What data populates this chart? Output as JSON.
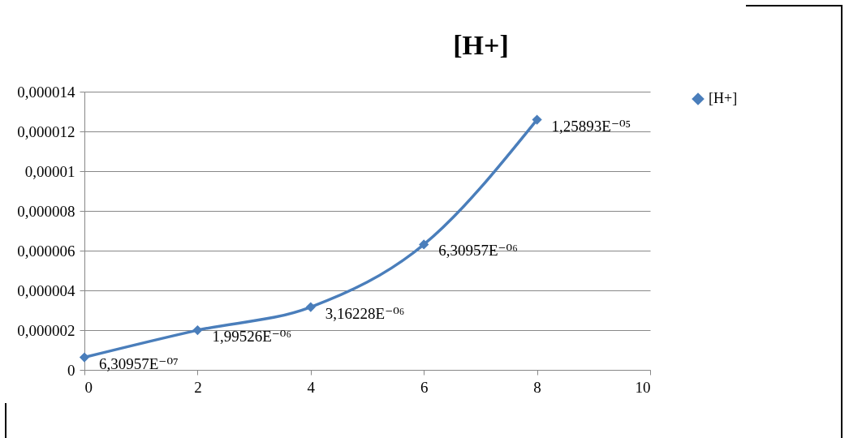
{
  "chart_data": {
    "type": "line",
    "title": "[H+]",
    "x": [
      0,
      2,
      4,
      6,
      8
    ],
    "series": [
      {
        "name": "[H+]",
        "color": "#4a7ebb",
        "values": [
          6.30957e-07,
          1.99526e-06,
          3.16228e-06,
          6.30957e-06,
          1.25893e-05
        ],
        "value_labels": [
          "6,30957E⁻⁰⁷",
          "1,99526E⁻⁰⁶",
          "3,16228E⁻⁰⁶",
          "6,30957E⁻⁰⁶",
          "1,25893E⁻⁰⁵"
        ]
      }
    ],
    "xlim": [
      0,
      10
    ],
    "xticks": [
      0,
      2,
      4,
      6,
      8,
      10
    ],
    "ylim": [
      0,
      1.4e-05
    ],
    "yticks": [
      {
        "value": 0,
        "label": "0"
      },
      {
        "value": 2e-06,
        "label": "0,000002"
      },
      {
        "value": 4e-06,
        "label": "0,000004"
      },
      {
        "value": 6e-06,
        "label": "0,000006"
      },
      {
        "value": 8e-06,
        "label": "0,000008"
      },
      {
        "value": 1e-05,
        "label": "0,00001"
      },
      {
        "value": 1.2e-05,
        "label": "0,000012"
      },
      {
        "value": 1.4e-05,
        "label": "0,000014"
      }
    ],
    "grid": "y",
    "legend": "right",
    "marker": "diamond",
    "line_style": "solid"
  }
}
